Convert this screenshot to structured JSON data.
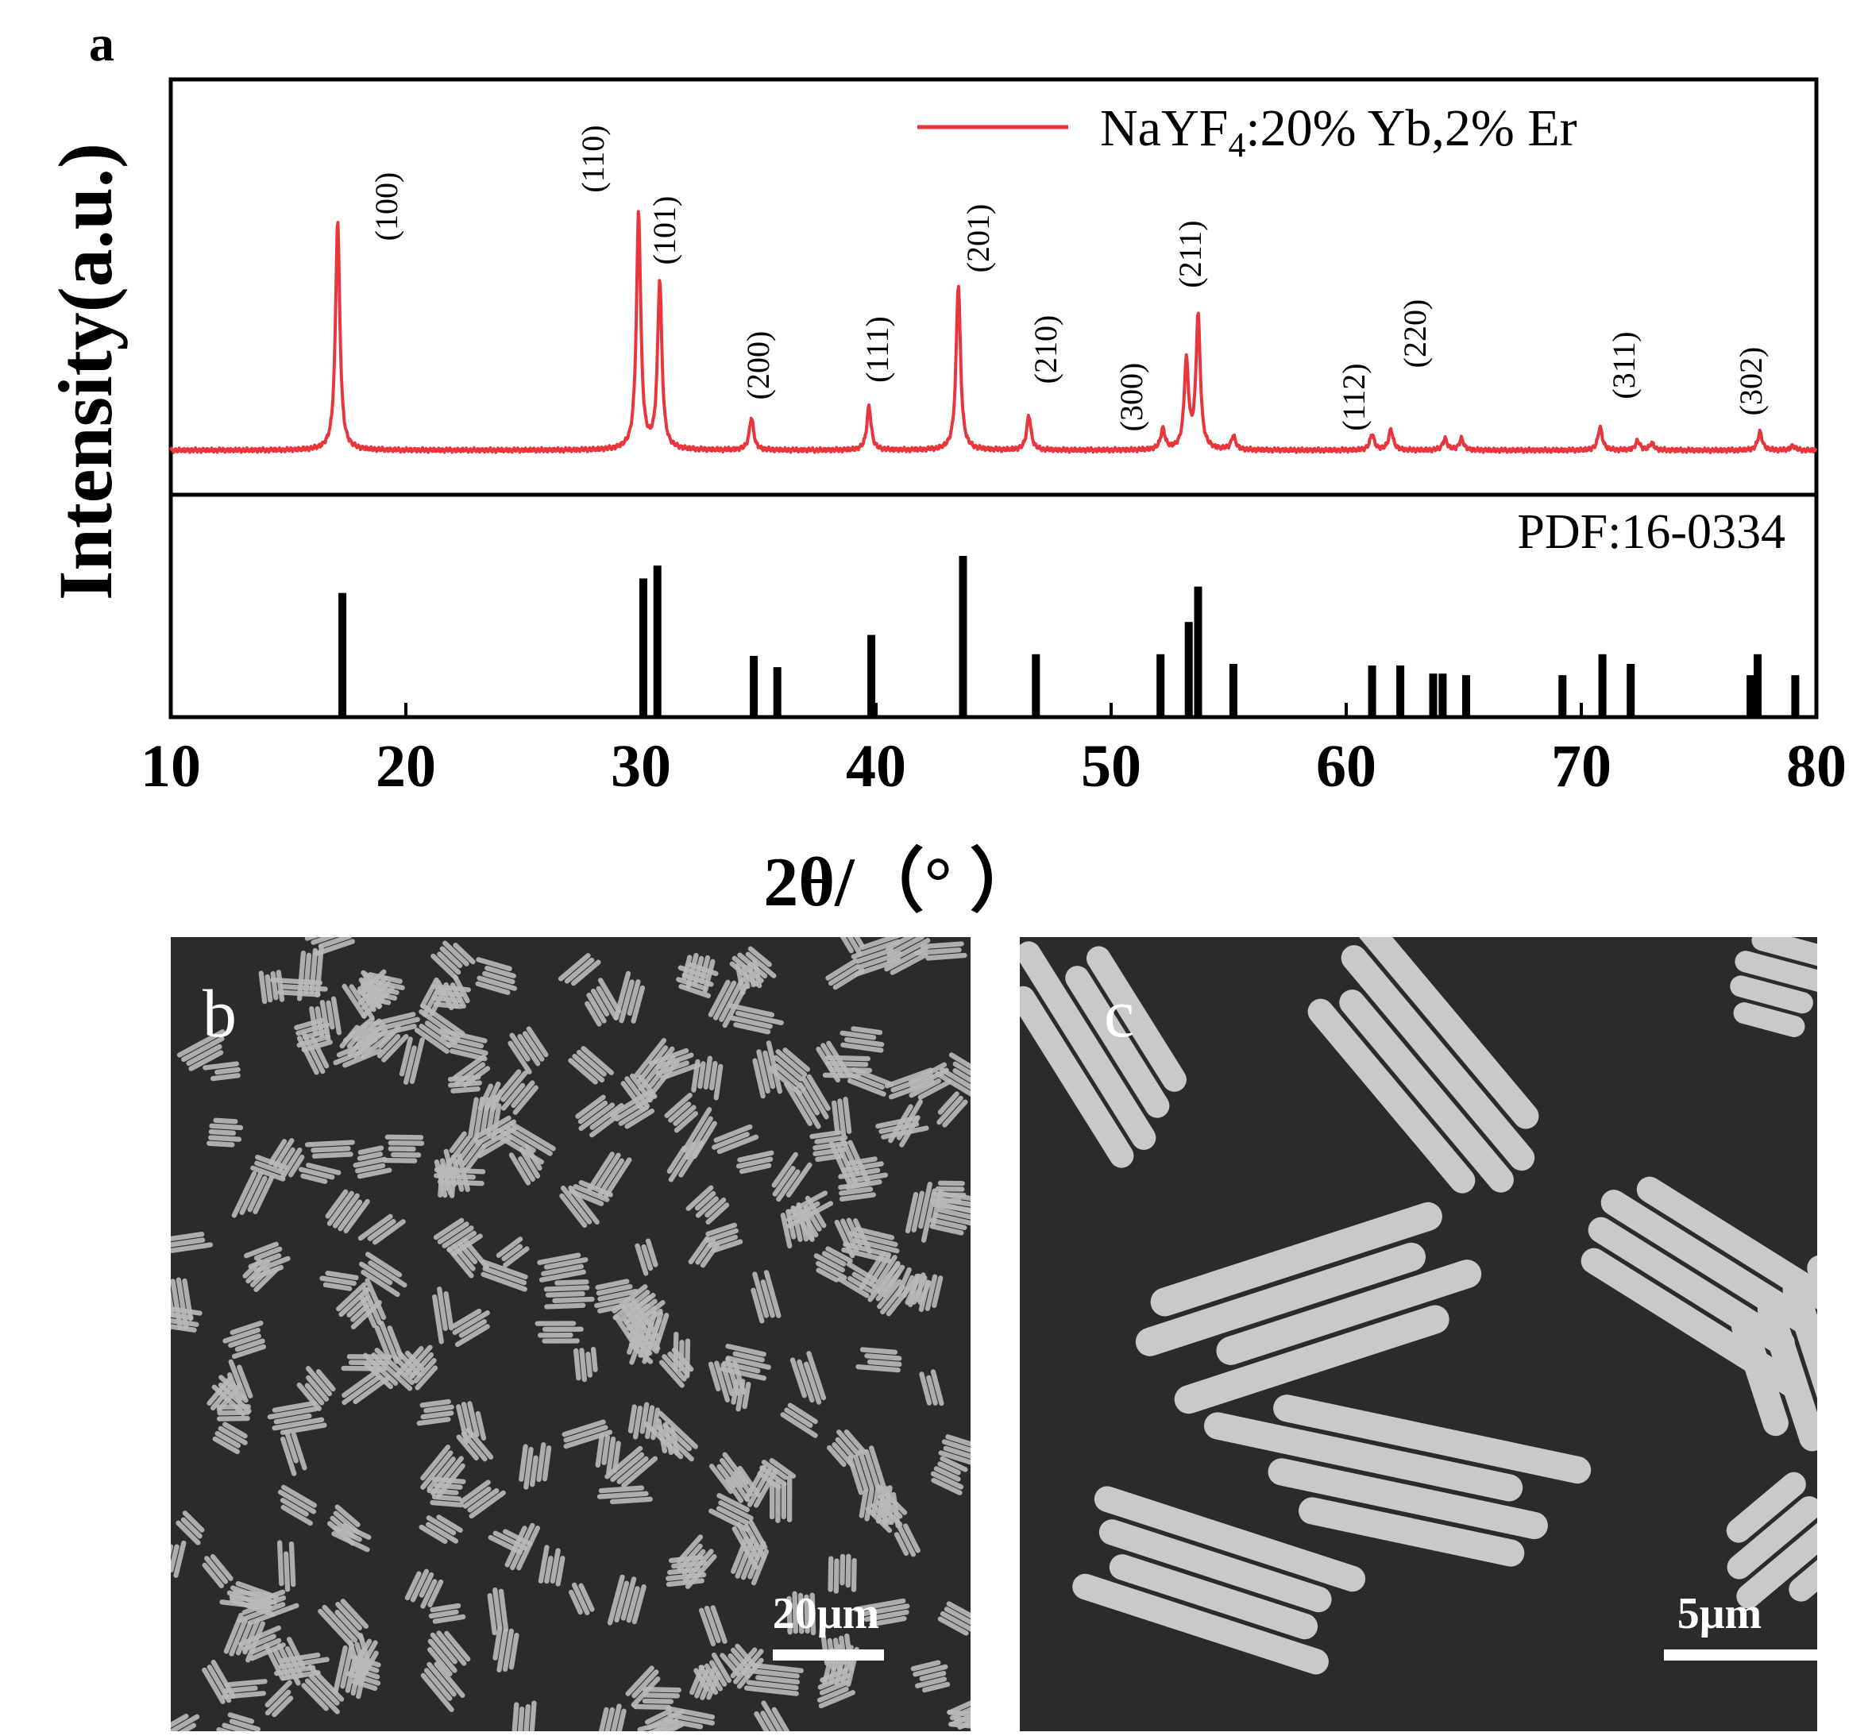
{
  "panel_a": {
    "label": "a",
    "ylabel": "Intensity(a.u.)",
    "xlabel": "2θ/（°  ）",
    "legend_text": "NaYF",
    "legend_sub": "4",
    "legend_rest": ":20% Yb,2% Er",
    "reference_label": "PDF:16-0334"
  },
  "panel_b": {
    "label": "b",
    "scale_label": "20μm"
  },
  "panel_c": {
    "label": "c",
    "scale_label": "5μm"
  },
  "colors": {
    "pattern": "#e8363c",
    "reference": "#000000",
    "sem_background": "#2b2b2b"
  },
  "chart_data": {
    "type": "line",
    "xlim": [
      10,
      80
    ],
    "xticks": [
      10,
      20,
      30,
      40,
      50,
      60,
      70,
      80
    ],
    "grid": false,
    "legend_position": "top-right",
    "series": [
      {
        "name": "NaYF4:20% Yb,2% Er",
        "peaks": [
          {
            "x": 17.1,
            "h": 1.0,
            "label": "(100)"
          },
          {
            "x": 29.9,
            "h": 1.03,
            "label": "(110)"
          },
          {
            "x": 30.8,
            "h": 0.73,
            "label": "(101)"
          },
          {
            "x": 34.7,
            "h": 0.14,
            "label": "(200)"
          },
          {
            "x": 39.7,
            "h": 0.19,
            "label": "(111)"
          },
          {
            "x": 43.5,
            "h": 0.72,
            "label": "(201)"
          },
          {
            "x": 46.5,
            "h": 0.15,
            "label": "(210)"
          },
          {
            "x": 52.2,
            "h": 0.09,
            "label": "(300)"
          },
          {
            "x": 53.2,
            "h": 0.38,
            "label": ""
          },
          {
            "x": 53.7,
            "h": 0.58,
            "label": "(211)"
          },
          {
            "x": 55.2,
            "h": 0.06,
            "label": ""
          },
          {
            "x": 61.1,
            "h": 0.07,
            "label": "(112)"
          },
          {
            "x": 61.9,
            "h": 0.09,
            "label": "(220)"
          },
          {
            "x": 64.2,
            "h": 0.05,
            "label": ""
          },
          {
            "x": 64.9,
            "h": 0.05,
            "label": ""
          },
          {
            "x": 70.8,
            "h": 0.1,
            "label": "(311)"
          },
          {
            "x": 72.4,
            "h": 0.04,
            "label": ""
          },
          {
            "x": 73.0,
            "h": 0.03,
            "label": ""
          },
          {
            "x": 77.6,
            "h": 0.08,
            "label": "(302)"
          },
          {
            "x": 79.0,
            "h": 0.02,
            "label": ""
          }
        ]
      },
      {
        "name": "PDF:16-0334",
        "sticks": [
          {
            "x": 17.3,
            "h": 0.77
          },
          {
            "x": 30.1,
            "h": 0.86
          },
          {
            "x": 30.7,
            "h": 0.94
          },
          {
            "x": 34.8,
            "h": 0.38
          },
          {
            "x": 35.8,
            "h": 0.31
          },
          {
            "x": 39.8,
            "h": 0.51
          },
          {
            "x": 43.7,
            "h": 1.0
          },
          {
            "x": 46.8,
            "h": 0.39
          },
          {
            "x": 52.1,
            "h": 0.39
          },
          {
            "x": 53.3,
            "h": 0.59
          },
          {
            "x": 53.7,
            "h": 0.81
          },
          {
            "x": 55.2,
            "h": 0.33
          },
          {
            "x": 61.1,
            "h": 0.32
          },
          {
            "x": 62.3,
            "h": 0.32
          },
          {
            "x": 63.7,
            "h": 0.27
          },
          {
            "x": 64.1,
            "h": 0.27
          },
          {
            "x": 65.1,
            "h": 0.26
          },
          {
            "x": 69.2,
            "h": 0.26
          },
          {
            "x": 70.9,
            "h": 0.39
          },
          {
            "x": 72.1,
            "h": 0.33
          },
          {
            "x": 77.2,
            "h": 0.26
          },
          {
            "x": 77.5,
            "h": 0.39
          },
          {
            "x": 79.1,
            "h": 0.26
          }
        ]
      }
    ]
  }
}
